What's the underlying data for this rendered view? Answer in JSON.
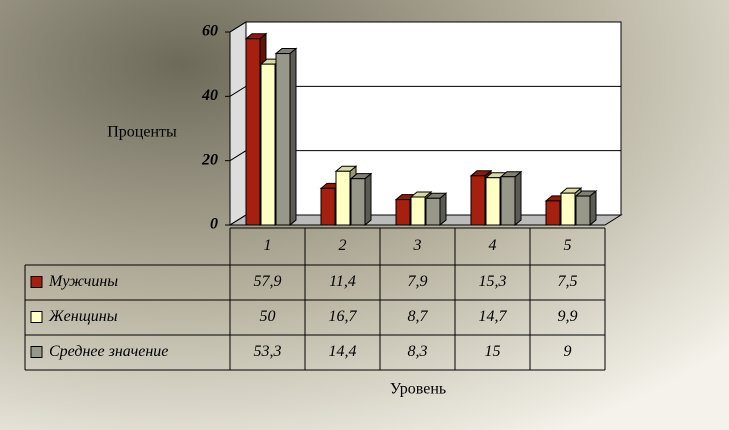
{
  "chart_data": {
    "type": "bar3d",
    "ylabel": "Проценты",
    "xlabel": "Уровень",
    "categories": [
      "1",
      "2",
      "3",
      "4",
      "5"
    ],
    "series": [
      {
        "name": "Мужчины",
        "color": "#a5200e",
        "values": [
          57.9,
          11.4,
          7.9,
          15.3,
          7.5
        ],
        "value_labels": [
          "57,9",
          "11,4",
          "7,9",
          "15,3",
          "7,5"
        ]
      },
      {
        "name": "Женщины",
        "color": "#ffffc4",
        "values": [
          50,
          16.7,
          8.7,
          14.7,
          9.9
        ],
        "value_labels": [
          "50",
          "16,7",
          "8,7",
          "14,7",
          "9,9"
        ]
      },
      {
        "name": "Среднее значение",
        "color": "#97978a",
        "values": [
          53.3,
          14.4,
          8.3,
          15,
          9
        ],
        "value_labels": [
          "53,3",
          "14,4",
          "8,3",
          "15",
          "9"
        ]
      }
    ],
    "ylim": [
      0,
      60
    ],
    "yticks": [
      0,
      20,
      40,
      60
    ],
    "grid": true
  }
}
